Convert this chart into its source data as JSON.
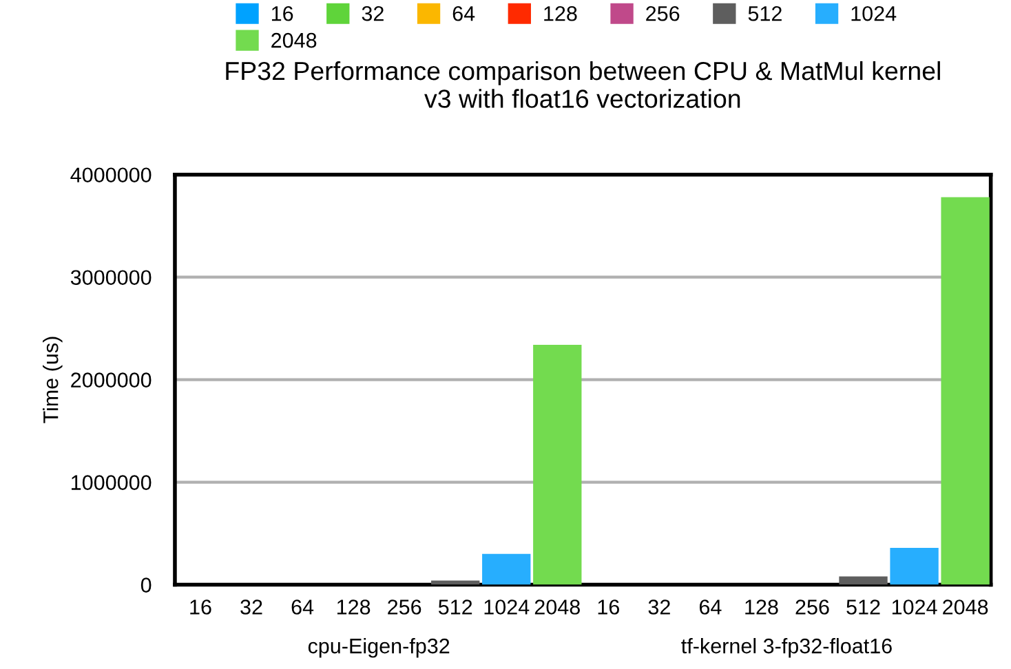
{
  "chart_data": {
    "type": "bar",
    "title": "FP32 Performance comparison between CPU & MatMul kernel\nv3 with float16 vectorization",
    "ylabel": "Time (us)",
    "categories": [
      "cpu-Eigen-fp32",
      "tf-kernel 3-fp32-float16"
    ],
    "series": [
      {
        "name": "16",
        "color": "#00a2ff",
        "values": [
          0,
          0
        ]
      },
      {
        "name": "32",
        "color": "#5fd43a",
        "values": [
          0,
          0
        ]
      },
      {
        "name": "64",
        "color": "#fbb700",
        "values": [
          0,
          0
        ]
      },
      {
        "name": "128",
        "color": "#ff2a00",
        "values": [
          0,
          0
        ]
      },
      {
        "name": "256",
        "color": "#c0498a",
        "values": [
          0,
          0
        ]
      },
      {
        "name": "512",
        "color": "#5e5e5e",
        "values": [
          40000,
          80000
        ]
      },
      {
        "name": "1024",
        "color": "#27aefe",
        "values": [
          300000,
          360000
        ]
      },
      {
        "name": "2048",
        "color": "#73db4f",
        "values": [
          2340000,
          3780000
        ]
      }
    ],
    "ylim": [
      0,
      4000000
    ],
    "yticks": [
      0,
      1000000,
      2000000,
      3000000,
      4000000
    ],
    "grid": "y",
    "legend": "top"
  }
}
